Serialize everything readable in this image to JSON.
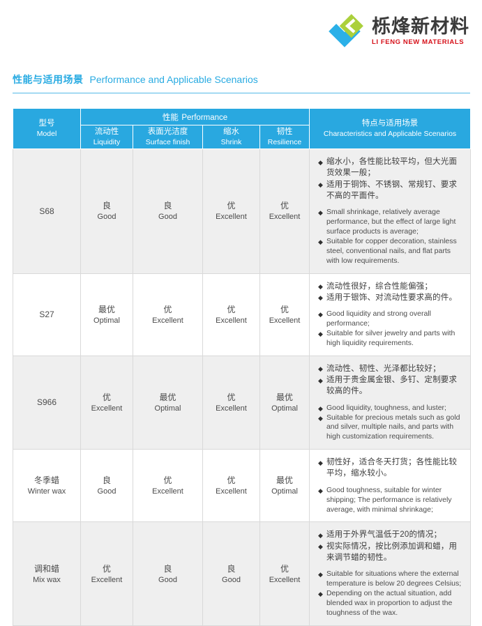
{
  "icons": {
    "bullet": "◆"
  },
  "colors": {
    "accent_blue": "#29a8e0",
    "title_blue": "#29abe2",
    "row_gray": "#efefef",
    "logo_green": "#abd03c",
    "logo_blue": "#2bb0e8",
    "logo_red": "#d6121b"
  },
  "logo": {
    "name_zh": "栎烽新材料",
    "name_en": "LI FENG NEW MATERIALS"
  },
  "section": {
    "title_zh": "性能与适用场景",
    "title_en": "Performance and Applicable Scenarios"
  },
  "table": {
    "header": {
      "model_zh": "型号",
      "model_en": "Model",
      "performance_zh": "性能",
      "performance_en": "Performance",
      "subcolumns": [
        {
          "zh": "流动性",
          "en": "Liquidity"
        },
        {
          "zh": "表面光洁度",
          "en": "Surface finish"
        },
        {
          "zh": "缩水",
          "en": "Shrink"
        },
        {
          "zh": "韧性",
          "en": "Resilience"
        }
      ],
      "characteristics_zh": "特点与适用场景",
      "characteristics_en": "Characteristics and Applicable Scenarios"
    },
    "rows": [
      {
        "model_zh": "S68",
        "model_en": "",
        "ratings": [
          {
            "zh": "良",
            "en": "Good"
          },
          {
            "zh": "良",
            "en": "Good"
          },
          {
            "zh": "优",
            "en": "Excellent"
          },
          {
            "zh": "优",
            "en": "Excellent"
          }
        ],
        "notes_zh": [
          "缩水小，各性能比较平均，但大光面货效果一般；",
          "适用于铜饰、不锈钢、常规钉、要求不高的平面件。"
        ],
        "notes_en": [
          "Small shrinkage, relatively average performance, but the effect of large light surface products is average;",
          "Suitable for copper decoration, stainless steel, conventional nails, and flat parts with low requirements."
        ]
      },
      {
        "model_zh": "S27",
        "model_en": "",
        "ratings": [
          {
            "zh": "最优",
            "en": "Optimal"
          },
          {
            "zh": "优",
            "en": "Excellent"
          },
          {
            "zh": "优",
            "en": "Excellent"
          },
          {
            "zh": "优",
            "en": "Excellent"
          }
        ],
        "notes_zh": [
          "流动性很好，综合性能偏强；",
          "适用于银饰、对流动性要求高的件。"
        ],
        "notes_en": [
          "Good liquidity and strong overall performance;",
          "Suitable for silver jewelry and parts with high liquidity requirements."
        ]
      },
      {
        "model_zh": "S966",
        "model_en": "",
        "ratings": [
          {
            "zh": "优",
            "en": "Excellent"
          },
          {
            "zh": "最优",
            "en": "Optimal"
          },
          {
            "zh": "优",
            "en": "Excellent"
          },
          {
            "zh": "最优",
            "en": "Optimal"
          }
        ],
        "notes_zh": [
          "流动性、韧性、光泽都比较好；",
          "适用于贵金属金银、多钉、定制要求较高的件。"
        ],
        "notes_en": [
          "Good liquidity, toughness, and luster;",
          "Suitable for precious metals such as gold and silver, multiple nails, and parts with high customization requirements."
        ]
      },
      {
        "model_zh": "冬季蜡",
        "model_en": "Winter wax",
        "ratings": [
          {
            "zh": "良",
            "en": "Good"
          },
          {
            "zh": "优",
            "en": "Excellent"
          },
          {
            "zh": "优",
            "en": "Excellent"
          },
          {
            "zh": "最优",
            "en": "Optimal"
          }
        ],
        "notes_zh": [
          "韧性好，适合冬天打货；各性能比较平均，缩水较小。"
        ],
        "notes_en": [
          "Good toughness, suitable for winter shipping; The performance is relatively average, with minimal shrinkage;"
        ]
      },
      {
        "model_zh": "调和蜡",
        "model_en": "Mix wax",
        "ratings": [
          {
            "zh": "优",
            "en": "Excellent"
          },
          {
            "zh": "良",
            "en": "Good"
          },
          {
            "zh": "良",
            "en": "Good"
          },
          {
            "zh": "优",
            "en": "Excellent"
          }
        ],
        "notes_zh": [
          "适用于外界气温低于20的情况；",
          "视实际情况，按比例添加调和蜡，用来调节蜡的韧性。"
        ],
        "notes_en": [
          "Suitable for situations where the external temperature is below 20 degrees Celsius;",
          "Depending on the actual situation, add blended wax in proportion to adjust the toughness of the wax."
        ]
      }
    ]
  }
}
